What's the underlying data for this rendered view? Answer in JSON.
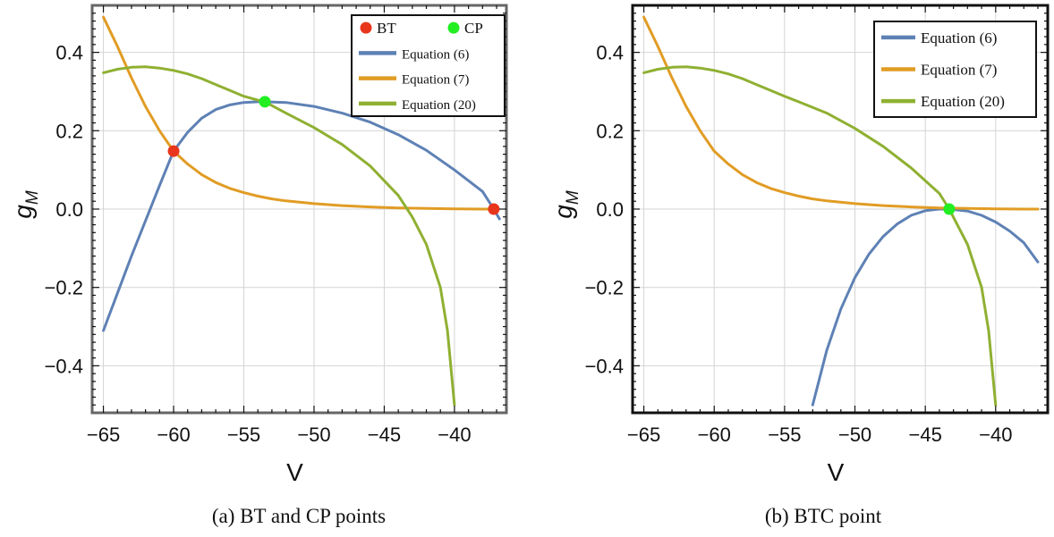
{
  "chart_data": [
    {
      "type": "line",
      "caption": "(a) BT and CP points",
      "xlabel": "V",
      "ylabel": "g_M",
      "xlim": [
        -65.8,
        -36.3
      ],
      "ylim": [
        -0.52,
        0.52
      ],
      "xticks": [
        -65,
        -60,
        -55,
        -50,
        -45,
        -40
      ],
      "yticks": [
        -0.4,
        -0.2,
        0.0,
        0.2,
        0.4
      ],
      "xtick_labels": [
        "−65",
        "−60",
        "−55",
        "−50",
        "−45",
        "−40"
      ],
      "ytick_labels": [
        "−0.4",
        "−0.2",
        "0.0",
        "0.2",
        "0.4"
      ],
      "grid": true,
      "legend_position": "top-right",
      "colors": {
        "eq6": "#5e81b5",
        "eq7": "#e19c24",
        "eq20": "#8fb032",
        "bt": "#e8361c",
        "cp": "#22ee22",
        "frame": "#666666"
      },
      "series": [
        {
          "name": "Equation (6)",
          "key": "eq6",
          "x": [
            -65,
            -63,
            -61,
            -60,
            -59,
            -58,
            -57,
            -56,
            -55,
            -54,
            -53.5,
            -52,
            -50,
            -48,
            -46,
            -44,
            -42,
            -40,
            -38,
            -37.2,
            -36.8
          ],
          "y": [
            -0.31,
            -0.12,
            0.06,
            0.148,
            0.196,
            0.232,
            0.254,
            0.266,
            0.272,
            0.274,
            0.274,
            0.272,
            0.262,
            0.245,
            0.222,
            0.19,
            0.15,
            0.1,
            0.045,
            0.0,
            -0.025
          ]
        },
        {
          "name": "Equation (7)",
          "key": "eq7",
          "x": [
            -65,
            -64,
            -63,
            -62,
            -61,
            -60,
            -59,
            -58,
            -57,
            -56,
            -55,
            -54,
            -53,
            -52,
            -50,
            -48,
            -46,
            -44,
            -42,
            -40,
            -38,
            -37.2
          ],
          "y": [
            0.49,
            0.415,
            0.335,
            0.262,
            0.2,
            0.148,
            0.115,
            0.088,
            0.068,
            0.053,
            0.042,
            0.033,
            0.026,
            0.021,
            0.014,
            0.009,
            0.0055,
            0.003,
            0.0015,
            0.0005,
            0.0,
            0.0
          ]
        },
        {
          "name": "Equation (20)",
          "key": "eq20",
          "x": [
            -65,
            -64,
            -63,
            -62,
            -61,
            -60,
            -59,
            -58,
            -57,
            -56,
            -55,
            -54,
            -53.5,
            -52,
            -50,
            -48,
            -46,
            -44,
            -43,
            -42,
            -41,
            -40.5,
            -40
          ],
          "y": [
            0.348,
            0.357,
            0.362,
            0.363,
            0.36,
            0.354,
            0.345,
            0.333,
            0.318,
            0.303,
            0.288,
            0.278,
            0.274,
            0.245,
            0.208,
            0.165,
            0.11,
            0.035,
            -0.02,
            -0.09,
            -0.2,
            -0.31,
            -0.5
          ]
        }
      ],
      "points": [
        {
          "name": "BT",
          "key": "bt",
          "coords": [
            [
              -60,
              0.148
            ],
            [
              -37.2,
              0.0
            ]
          ]
        },
        {
          "name": "CP",
          "key": "cp",
          "coords": [
            [
              -53.5,
              0.274
            ]
          ]
        }
      ]
    },
    {
      "type": "line",
      "caption": "(b) BTC point",
      "xlabel": "V",
      "ylabel": "g_M",
      "xlim": [
        -65.8,
        -36.3
      ],
      "ylim": [
        -0.52,
        0.52
      ],
      "xticks": [
        -65,
        -60,
        -55,
        -50,
        -45,
        -40
      ],
      "yticks": [
        -0.4,
        -0.2,
        0.0,
        0.2,
        0.4
      ],
      "xtick_labels": [
        "−65",
        "−60",
        "−55",
        "−50",
        "−45",
        "−40"
      ],
      "ytick_labels": [
        "−0.4",
        "−0.2",
        "0.0",
        "0.2",
        "0.4"
      ],
      "grid": true,
      "legend_position": "top-right",
      "colors": {
        "eq6": "#5e81b5",
        "eq7": "#e19c24",
        "eq20": "#8fb032",
        "btc": "#22ee22",
        "frame": "#111111"
      },
      "series": [
        {
          "name": "Equation (6)",
          "key": "eq6",
          "x": [
            -53,
            -52,
            -51,
            -50,
            -49,
            -48,
            -47,
            -46,
            -45,
            -44,
            -43.3,
            -42,
            -41,
            -40,
            -39,
            -38,
            -37
          ],
          "y": [
            -0.5,
            -0.36,
            -0.255,
            -0.175,
            -0.115,
            -0.07,
            -0.038,
            -0.016,
            -0.004,
            0.0,
            0.0,
            -0.005,
            -0.016,
            -0.033,
            -0.056,
            -0.086,
            -0.135
          ]
        },
        {
          "name": "Equation (7)",
          "key": "eq7",
          "x": [
            -65,
            -64,
            -63,
            -62,
            -61,
            -60,
            -59,
            -58,
            -57,
            -56,
            -55,
            -54,
            -53,
            -52,
            -50,
            -48,
            -46,
            -44,
            -42,
            -40,
            -38,
            -37
          ],
          "y": [
            0.49,
            0.415,
            0.335,
            0.262,
            0.2,
            0.148,
            0.115,
            0.088,
            0.068,
            0.053,
            0.042,
            0.033,
            0.026,
            0.021,
            0.014,
            0.009,
            0.0055,
            0.003,
            0.0015,
            0.0005,
            0.0,
            0.0
          ]
        },
        {
          "name": "Equation (20)",
          "key": "eq20",
          "x": [
            -65,
            -64,
            -63,
            -62,
            -61,
            -60,
            -59,
            -58,
            -57,
            -56,
            -55,
            -54,
            -52,
            -50,
            -48,
            -46,
            -44,
            -43.3,
            -42,
            -41,
            -40.5,
            -40
          ],
          "y": [
            0.348,
            0.357,
            0.362,
            0.363,
            0.36,
            0.354,
            0.345,
            0.333,
            0.318,
            0.303,
            0.288,
            0.274,
            0.245,
            0.206,
            0.16,
            0.105,
            0.04,
            0.0,
            -0.09,
            -0.2,
            -0.31,
            -0.5
          ]
        }
      ],
      "points": [
        {
          "name": "BTC",
          "key": "btc",
          "coords": [
            [
              -43.3,
              0.0
            ]
          ]
        }
      ]
    }
  ]
}
